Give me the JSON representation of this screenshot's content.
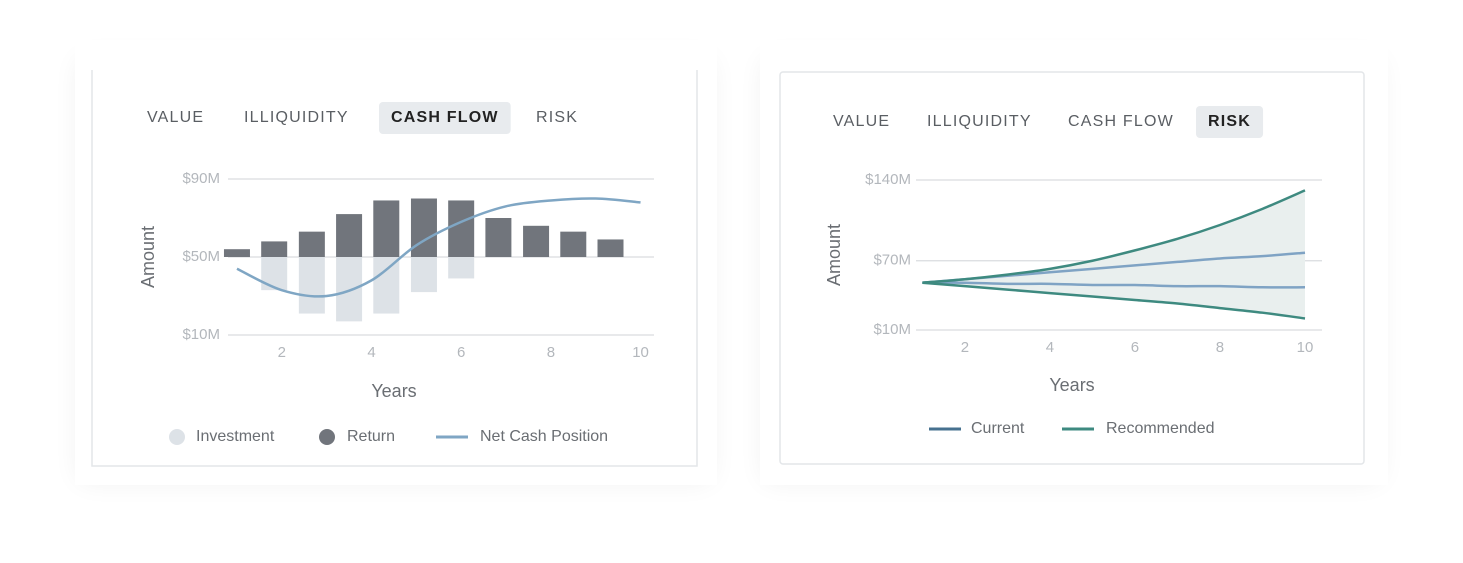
{
  "panels": [
    {
      "tabs": [
        "VALUE",
        "ILLIQUIDITY",
        "CASH FLOW",
        "RISK"
      ],
      "active_tab": 2
    },
    {
      "tabs": [
        "VALUE",
        "ILLIQUIDITY",
        "CASH FLOW",
        "RISK"
      ],
      "active_tab": 3
    }
  ],
  "chart_data": [
    {
      "type": "bar",
      "y_label": "Amount",
      "x_label": "Years",
      "xlim": [
        0.8,
        10.3
      ],
      "xticks": [
        2,
        4,
        6,
        8,
        10
      ],
      "ylim": [
        10,
        90
      ],
      "yticks": [
        {
          "value": 90,
          "label": "$90M"
        },
        {
          "value": 50,
          "label": "$50M"
        },
        {
          "value": 10,
          "label": "$10M"
        }
      ],
      "grid": true,
      "baseline": 50,
      "bar_x": [
        1,
        1.83,
        2.67,
        3.5,
        4.33,
        5.17,
        6,
        6.83,
        7.67,
        8.5,
        9.33
      ],
      "series": [
        {
          "name": "Investment",
          "color": "#dde2e7",
          "values": [
            null,
            33,
            21,
            17,
            21,
            32,
            39,
            null,
            null,
            null,
            null
          ]
        },
        {
          "name": "Return",
          "color": "#71757c",
          "values": [
            54,
            58,
            63,
            72,
            79,
            80,
            79,
            70,
            66,
            63,
            59
          ]
        },
        {
          "name": "Net Cash Position",
          "color": "#7fa6c4",
          "type": "line",
          "x": [
            1,
            2,
            3,
            4,
            5,
            6,
            7,
            8,
            9,
            10
          ],
          "values": [
            44,
            33,
            30,
            38,
            56,
            68,
            76,
            79,
            80,
            78
          ]
        }
      ]
    },
    {
      "type": "line",
      "y_label": "Amount",
      "x_label": "Years",
      "xlim": [
        0.85,
        10.4
      ],
      "xticks": [
        2,
        4,
        6,
        8,
        10
      ],
      "ylim": [
        10,
        140
      ],
      "yticks": [
        {
          "value": 140,
          "label": "$140M"
        },
        {
          "value": 70,
          "label": "$70M"
        },
        {
          "value": 10,
          "label": "$10M"
        }
      ],
      "grid": true,
      "x": [
        1,
        2,
        3,
        4,
        5,
        6,
        7,
        8,
        9,
        10
      ],
      "series": [
        {
          "name": "Current",
          "color": "#7fa3c4",
          "legend_color": "#46718f",
          "upper": [
            51,
            54,
            57,
            60,
            63,
            66,
            69,
            72,
            74,
            77
          ],
          "lower": [
            51,
            51,
            50,
            50,
            49,
            49,
            48,
            48,
            47,
            47
          ]
        },
        {
          "name": "Recommended",
          "color": "#3e8a80",
          "fill": "#e9efee",
          "upper": [
            51,
            54,
            58,
            63,
            70,
            79,
            89,
            101,
            115,
            131
          ],
          "lower": [
            51,
            48,
            45,
            42,
            39,
            36,
            33,
            29,
            25,
            20
          ]
        }
      ]
    }
  ]
}
